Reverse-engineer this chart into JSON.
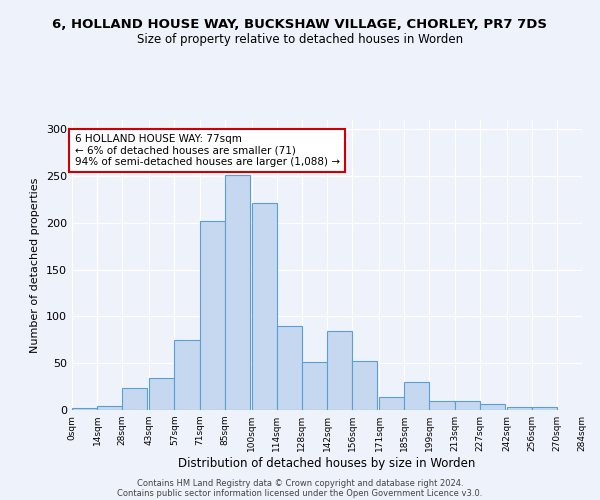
{
  "title_line1": "6, HOLLAND HOUSE WAY, BUCKSHAW VILLAGE, CHORLEY, PR7 7DS",
  "title_line2": "Size of property relative to detached houses in Worden",
  "xlabel": "Distribution of detached houses by size in Worden",
  "ylabel": "Number of detached properties",
  "annotation_line1": "6 HOLLAND HOUSE WAY: 77sqm",
  "annotation_line2": "← 6% of detached houses are smaller (71)",
  "annotation_line3": "94% of semi-detached houses are larger (1,088) →",
  "footer_line1": "Contains HM Land Registry data © Crown copyright and database right 2024.",
  "footer_line2": "Contains public sector information licensed under the Open Government Licence v3.0.",
  "bar_color": "#c5d8f0",
  "bar_edge_color": "#5a9fd4",
  "annotation_box_color": "#ffffff",
  "annotation_box_edge": "#cc0000",
  "bins_left": [
    0,
    14,
    28,
    43,
    57,
    71,
    85,
    100,
    114,
    128,
    142,
    156,
    171,
    185,
    199,
    213,
    227,
    242,
    256,
    270
  ],
  "bin_width": 14,
  "bar_heights": [
    2,
    4,
    24,
    34,
    75,
    202,
    251,
    221,
    90,
    51,
    84,
    52,
    14,
    30,
    10,
    10,
    6,
    3,
    3
  ],
  "ylim": [
    0,
    310
  ],
  "yticks": [
    0,
    50,
    100,
    150,
    200,
    250,
    300
  ],
  "property_size": 77,
  "bg_color": "#eef2fa"
}
